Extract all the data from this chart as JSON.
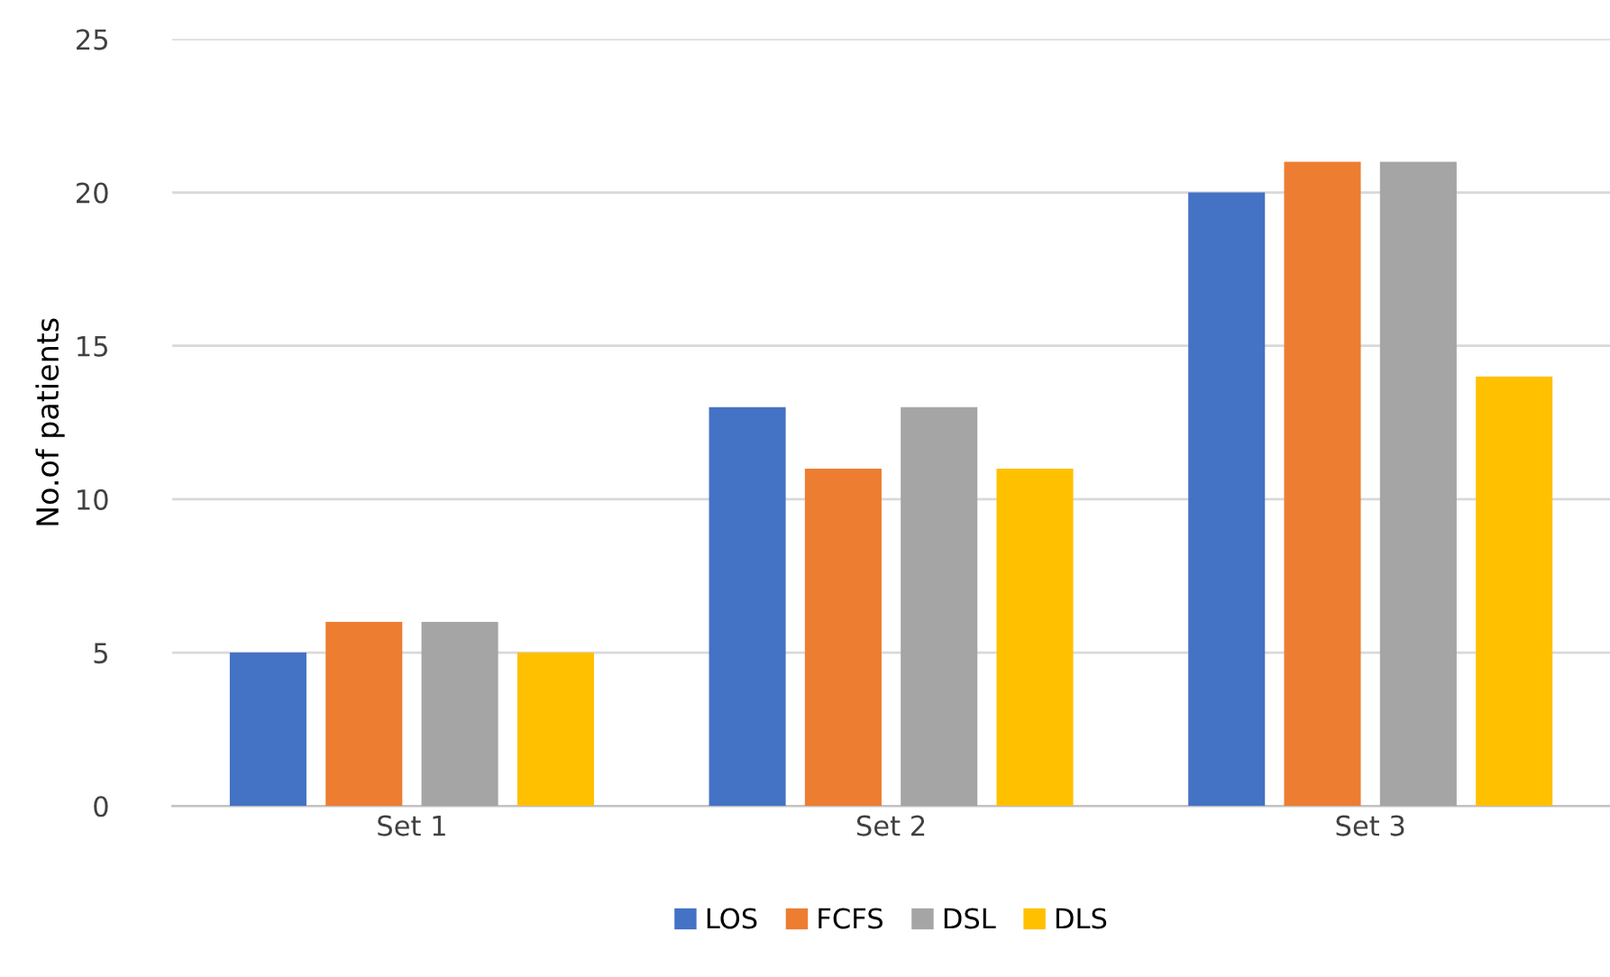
{
  "chart_data": {
    "type": "bar",
    "ylabel": "No.of patients",
    "categories": [
      "Set 1",
      "Set 2",
      "Set 3"
    ],
    "series": [
      {
        "name": "LOS",
        "color": "#4472c4",
        "values": [
          5,
          13,
          20
        ]
      },
      {
        "name": "FCFS",
        "color": "#ed7d31",
        "values": [
          6,
          11,
          21
        ]
      },
      {
        "name": "DSL",
        "color": "#a5a5a5",
        "values": [
          6,
          13,
          21
        ]
      },
      {
        "name": "DLS",
        "color": "#ffc000",
        "values": [
          5,
          11,
          14
        ]
      }
    ],
    "ylim": [
      0,
      25
    ],
    "yticks": [
      0,
      5,
      10,
      15,
      20,
      25
    ],
    "grid": "y",
    "legend": "bottom"
  }
}
